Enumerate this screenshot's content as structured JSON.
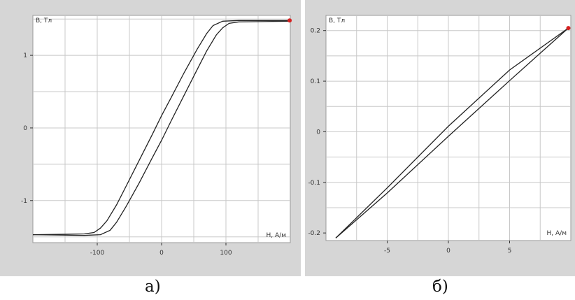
{
  "colors": {
    "panel_bg": "#d6d6d6",
    "plot_bg": "#ffffff",
    "grid": "#c8c8c8",
    "curve": "#222222",
    "end_marker": "#d62020"
  },
  "chart_data": [
    {
      "type": "line",
      "caption": "а)",
      "xlabel": "H, А/м",
      "ylabel": "В, Тл",
      "xlim": [
        -200,
        200
      ],
      "ylim": [
        -1.58,
        1.55
      ],
      "x_ticks": [
        -100,
        0,
        100
      ],
      "x_tick_labels": [
        "-100",
        "0",
        "100"
      ],
      "y_ticks": [
        -1,
        0,
        1
      ],
      "y_tick_labels": [
        "-1",
        "0",
        "1"
      ],
      "x_grid": [
        -150,
        -100,
        -50,
        0,
        50,
        100,
        150
      ],
      "y_grid": [
        -1.5,
        -1,
        -0.5,
        0,
        0.5,
        1,
        1.5
      ],
      "grid": true,
      "series": [
        {
          "values": [
            [
              -200,
              -1.47
            ],
            [
              -120,
              -1.46
            ],
            [
              -105,
              -1.44
            ],
            [
              -95,
              -1.38
            ],
            [
              -85,
              -1.28
            ],
            [
              -70,
              -1.06
            ],
            [
              -55,
              -0.8
            ],
            [
              -35,
              -0.45
            ],
            [
              -15,
              -0.1
            ],
            [
              0,
              0.17
            ],
            [
              15,
              0.42
            ],
            [
              35,
              0.76
            ],
            [
              55,
              1.08
            ],
            [
              70,
              1.3
            ],
            [
              80,
              1.41
            ],
            [
              95,
              1.47
            ],
            [
              120,
              1.48
            ],
            [
              200,
              1.48
            ]
          ]
        },
        {
          "values": [
            [
              -200,
              -1.47
            ],
            [
              -120,
              -1.48
            ],
            [
              -95,
              -1.47
            ],
            [
              -80,
              -1.41
            ],
            [
              -70,
              -1.3
            ],
            [
              -55,
              -1.08
            ],
            [
              -35,
              -0.76
            ],
            [
              -15,
              -0.42
            ],
            [
              0,
              -0.17
            ],
            [
              15,
              0.1
            ],
            [
              35,
              0.45
            ],
            [
              55,
              0.8
            ],
            [
              70,
              1.06
            ],
            [
              85,
              1.28
            ],
            [
              95,
              1.38
            ],
            [
              105,
              1.44
            ],
            [
              120,
              1.46
            ],
            [
              200,
              1.47
            ]
          ]
        }
      ],
      "end_point": [
        199,
        1.48
      ]
    },
    {
      "type": "line",
      "caption": "б)",
      "xlabel": "H, А/м",
      "ylabel": "В, Тл",
      "xlim": [
        -10,
        10
      ],
      "ylim": [
        -0.215,
        0.23
      ],
      "x_ticks": [
        -5,
        0,
        5
      ],
      "x_tick_labels": [
        "-5",
        "0",
        "5"
      ],
      "y_ticks": [
        -0.2,
        -0.1,
        0,
        0.1,
        0.2
      ],
      "y_tick_labels": [
        "-0.2",
        "-0.1",
        "0",
        "0.1",
        "0.2"
      ],
      "x_grid": [
        -7.5,
        -5,
        -2.5,
        0,
        2.5,
        5,
        7.5
      ],
      "y_grid": [
        -0.15,
        -0.1,
        -0.05,
        0,
        0.05,
        0.1,
        0.15,
        0.2
      ],
      "grid": true,
      "series": [
        {
          "values": [
            [
              -9.2,
              -0.21
            ],
            [
              -5,
              -0.111
            ],
            [
              0,
              0.011
            ],
            [
              5,
              0.122
            ],
            [
              9.8,
              0.205
            ]
          ]
        },
        {
          "values": [
            [
              -9.2,
              -0.21
            ],
            [
              -5,
              -0.121
            ],
            [
              0,
              -0.009
            ],
            [
              5,
              0.101
            ],
            [
              9.8,
              0.205
            ]
          ]
        }
      ],
      "end_point": [
        9.8,
        0.205
      ]
    }
  ]
}
